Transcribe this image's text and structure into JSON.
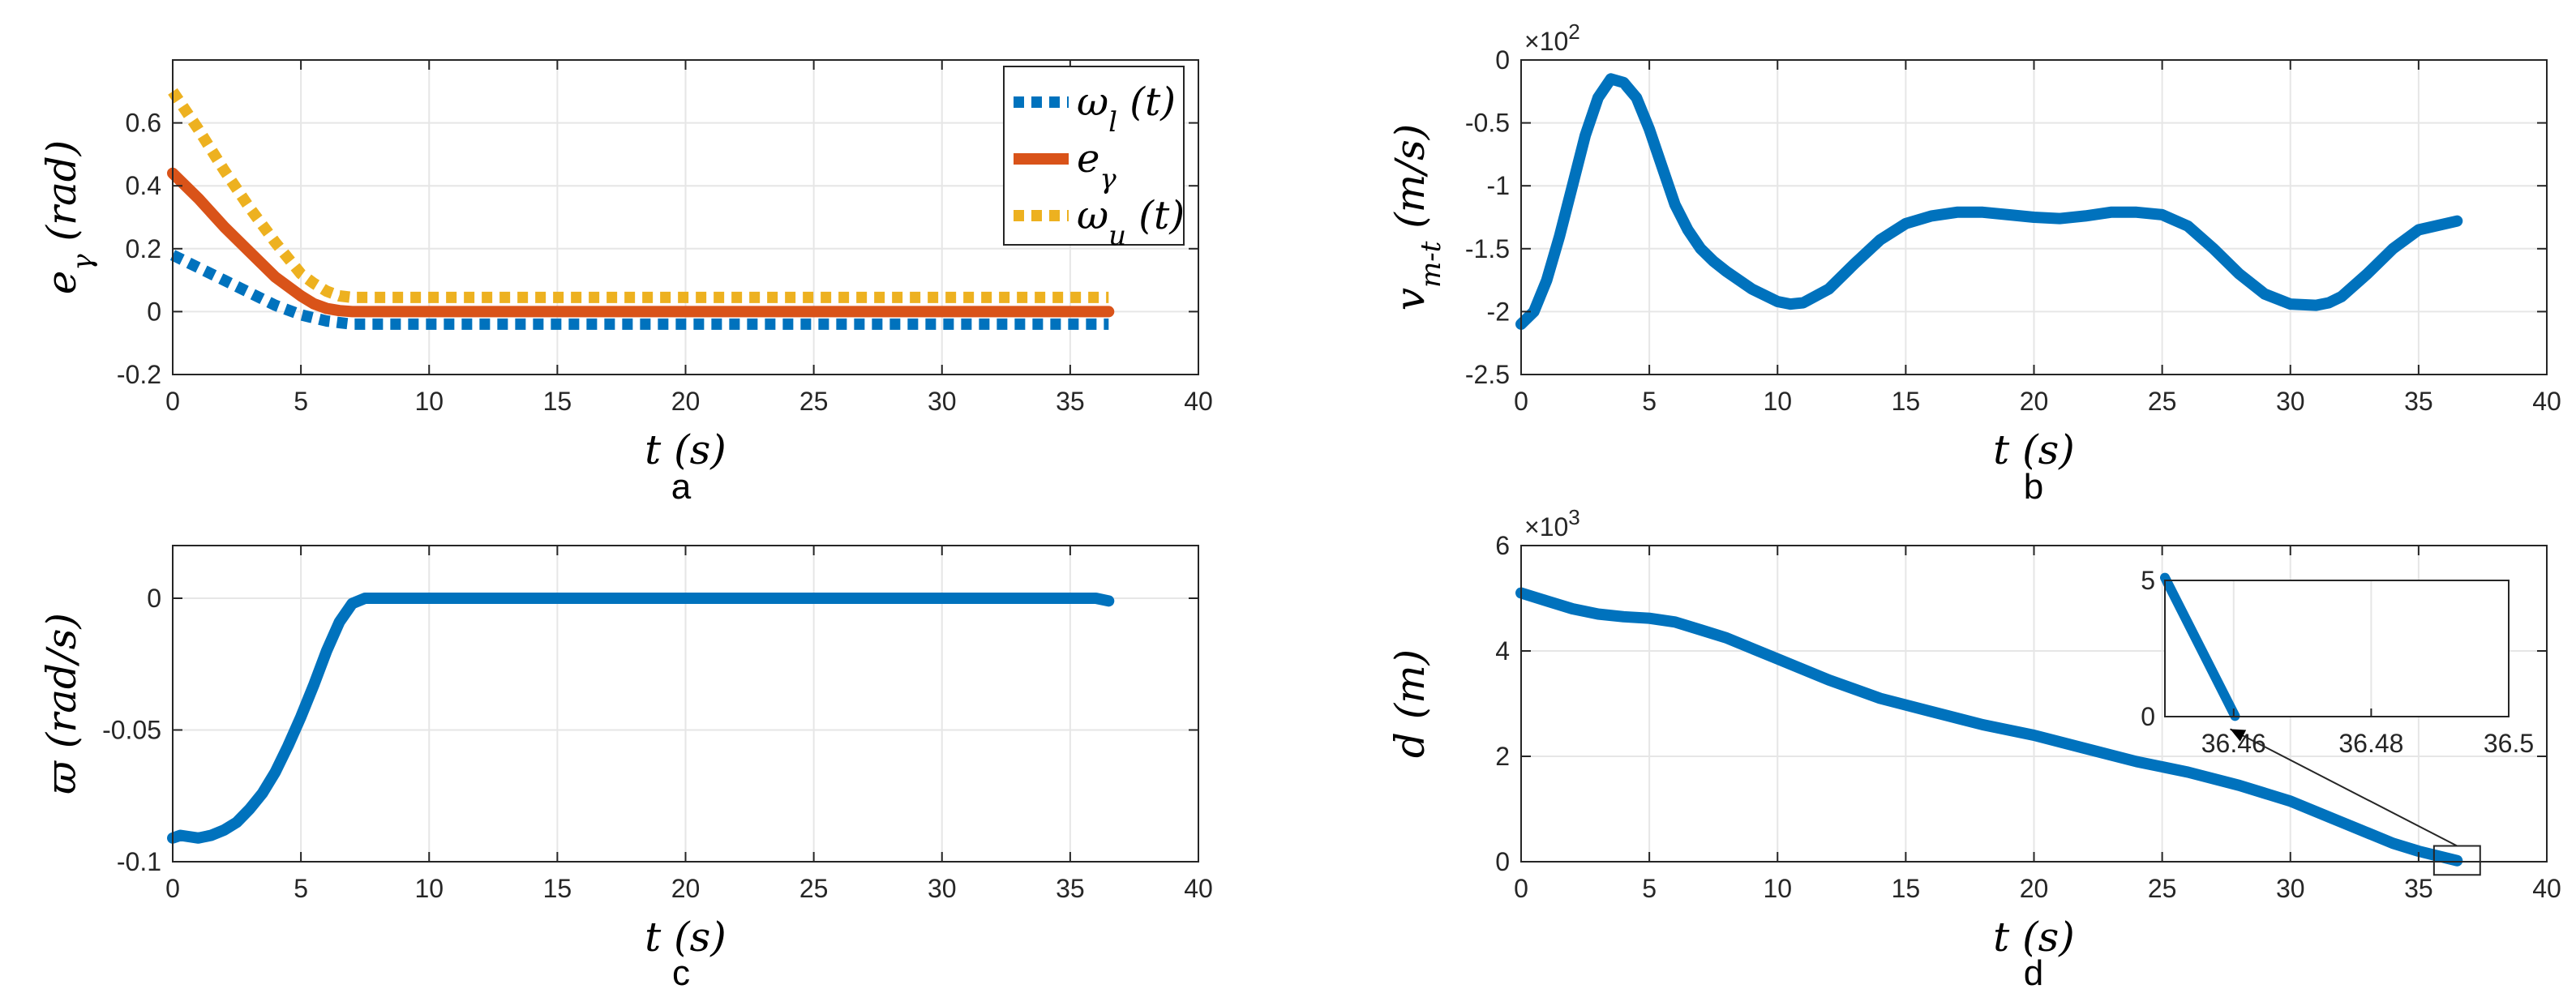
{
  "chart_data": [
    {
      "id": "a",
      "type": "line",
      "subtitle": "a",
      "xlabel": "t (s)",
      "ylabel": "e_γ (rad)",
      "xlim": [
        0,
        40
      ],
      "ylim": [
        -0.2,
        0.8
      ],
      "xticks": [
        0,
        5,
        10,
        15,
        20,
        25,
        30,
        35,
        40
      ],
      "xtick_labels": [
        "0",
        "5",
        "10",
        "15",
        "20",
        "25",
        "30",
        "35",
        "40"
      ],
      "yticks": [
        -0.2,
        0,
        0.2,
        0.4,
        0.6
      ],
      "ytick_labels": [
        "-0.2",
        "0",
        "0.2",
        "0.4",
        "0.6"
      ],
      "grid": true,
      "legend_position": "top-right",
      "series": [
        {
          "name": "ω_l (t)",
          "color": "#0072BD",
          "style": "dotted",
          "x": [
            0,
            1,
            2,
            3,
            4,
            5,
            5.5,
            6,
            6.5,
            7,
            8,
            10,
            15,
            20,
            25,
            30,
            36.5
          ],
          "y": [
            0.18,
            0.14,
            0.1,
            0.06,
            0.02,
            -0.01,
            -0.02,
            -0.03,
            -0.035,
            -0.04,
            -0.04,
            -0.04,
            -0.04,
            -0.04,
            -0.04,
            -0.04,
            -0.04
          ]
        },
        {
          "name": "e_γ",
          "color": "#D95319",
          "style": "solid",
          "x": [
            0,
            1,
            2,
            3,
            4,
            5,
            5.5,
            6,
            6.5,
            7,
            8,
            10,
            15,
            20,
            25,
            30,
            36.5
          ],
          "y": [
            0.44,
            0.36,
            0.27,
            0.19,
            0.11,
            0.05,
            0.025,
            0.01,
            0.003,
            0,
            0,
            0,
            0,
            0,
            0,
            0,
            0
          ]
        },
        {
          "name": "ω_u (t)",
          "color": "#EDB120",
          "style": "dotted",
          "x": [
            0,
            1,
            2,
            3,
            4,
            5,
            5.5,
            6,
            6.5,
            7,
            8,
            10,
            15,
            20,
            25,
            30,
            36.5
          ],
          "y": [
            0.7,
            0.58,
            0.45,
            0.33,
            0.22,
            0.12,
            0.09,
            0.065,
            0.05,
            0.045,
            0.045,
            0.045,
            0.045,
            0.045,
            0.045,
            0.045,
            0.045
          ]
        }
      ]
    },
    {
      "id": "b",
      "type": "line",
      "subtitle": "b",
      "xlabel": "t (s)",
      "ylabel": "v_{m-t} (m/s)",
      "exponent_label": "×10",
      "exponent_power": "2",
      "xlim": [
        0,
        40
      ],
      "ylim": [
        -2.5,
        0
      ],
      "xticks": [
        0,
        5,
        10,
        15,
        20,
        25,
        30,
        35,
        40
      ],
      "xtick_labels": [
        "0",
        "5",
        "10",
        "15",
        "20",
        "25",
        "30",
        "35",
        "40"
      ],
      "yticks": [
        -2.5,
        -2,
        -1.5,
        -1,
        -0.5,
        0
      ],
      "ytick_labels": [
        "-2.5",
        "-2",
        "-1.5",
        "-1",
        "-0.5",
        "0"
      ],
      "grid": true,
      "series": [
        {
          "name": "v_{m-t}",
          "color": "#0072BD",
          "style": "solid",
          "x": [
            0,
            0.5,
            1,
            1.5,
            2,
            2.5,
            3,
            3.5,
            4,
            4.5,
            5,
            5.5,
            6,
            6.5,
            7,
            7.5,
            8,
            9,
            10,
            10.5,
            11,
            12,
            13,
            14,
            15,
            16,
            17,
            18,
            19,
            20,
            21,
            22,
            23,
            24,
            25,
            26,
            27,
            28,
            29,
            30,
            31,
            31.5,
            32,
            33,
            34,
            35,
            36.5
          ],
          "y": [
            -2.1,
            -2.0,
            -1.75,
            -1.4,
            -1.0,
            -0.6,
            -0.3,
            -0.15,
            -0.18,
            -0.3,
            -0.55,
            -0.85,
            -1.15,
            -1.35,
            -1.5,
            -1.6,
            -1.68,
            -1.82,
            -1.92,
            -1.94,
            -1.93,
            -1.82,
            -1.62,
            -1.43,
            -1.3,
            -1.24,
            -1.21,
            -1.21,
            -1.23,
            -1.25,
            -1.26,
            -1.24,
            -1.21,
            -1.21,
            -1.23,
            -1.32,
            -1.5,
            -1.7,
            -1.86,
            -1.94,
            -1.95,
            -1.93,
            -1.88,
            -1.7,
            -1.5,
            -1.35,
            -1.28
          ]
        }
      ]
    },
    {
      "id": "c",
      "type": "line",
      "subtitle": "c",
      "xlabel": "t (s)",
      "ylabel": "ϖ (rad/s)",
      "xlim": [
        0,
        40
      ],
      "ylim": [
        -0.1,
        0.02
      ],
      "xticks": [
        0,
        5,
        10,
        15,
        20,
        25,
        30,
        35,
        40
      ],
      "xtick_labels": [
        "0",
        "5",
        "10",
        "15",
        "20",
        "25",
        "30",
        "35",
        "40"
      ],
      "yticks": [
        -0.1,
        -0.05,
        0
      ],
      "ytick_labels": [
        "-0.1",
        "-0.05",
        "0"
      ],
      "grid": true,
      "series": [
        {
          "name": "ϖ",
          "color": "#0072BD",
          "style": "solid",
          "x": [
            0,
            0.3,
            1,
            1.5,
            2,
            2.5,
            3,
            3.5,
            4,
            4.5,
            5,
            5.5,
            6,
            6.5,
            7,
            7.5,
            8,
            10,
            15,
            20,
            25,
            30,
            36,
            36.5
          ],
          "y": [
            -0.091,
            -0.09,
            -0.091,
            -0.09,
            -0.088,
            -0.085,
            -0.08,
            -0.074,
            -0.066,
            -0.056,
            -0.045,
            -0.033,
            -0.02,
            -0.009,
            -0.002,
            0,
            0,
            0,
            0,
            0,
            0,
            0,
            0,
            -0.001
          ]
        }
      ]
    },
    {
      "id": "d",
      "type": "line",
      "subtitle": "d",
      "xlabel": "t (s)",
      "ylabel": "d (m)",
      "exponent_label": "×10",
      "exponent_power": "3",
      "xlim": [
        0,
        40
      ],
      "ylim": [
        0,
        6
      ],
      "xticks": [
        0,
        5,
        10,
        15,
        20,
        25,
        30,
        35,
        40
      ],
      "xtick_labels": [
        "0",
        "5",
        "10",
        "15",
        "20",
        "25",
        "30",
        "35",
        "40"
      ],
      "yticks": [
        0,
        2,
        4,
        6
      ],
      "ytick_labels": [
        "0",
        "2",
        "4",
        "6"
      ],
      "grid": true,
      "series": [
        {
          "name": "d",
          "color": "#0072BD",
          "style": "solid",
          "x": [
            0,
            1,
            2,
            3,
            4,
            5,
            6,
            7,
            8,
            9,
            10,
            12,
            14,
            16,
            18,
            20,
            22,
            24,
            26,
            28,
            30,
            32,
            34,
            35,
            36,
            36.5
          ],
          "y": [
            5.1,
            4.95,
            4.8,
            4.7,
            4.65,
            4.62,
            4.55,
            4.4,
            4.25,
            4.05,
            3.85,
            3.45,
            3.1,
            2.85,
            2.6,
            2.4,
            2.15,
            1.9,
            1.7,
            1.45,
            1.15,
            0.75,
            0.35,
            0.2,
            0.08,
            0.02
          ]
        }
      ],
      "inset": {
        "xlim": [
          36.45,
          36.5
        ],
        "ylim": [
          0,
          5
        ],
        "xticks": [
          36.46,
          36.48,
          36.5
        ],
        "xtick_labels": [
          "36.46",
          "36.48",
          "36.5"
        ],
        "yticks": [
          0,
          5
        ],
        "ytick_labels": [
          "0",
          "5"
        ],
        "x": [
          36.45,
          36.4602
        ],
        "y": [
          5.1,
          0.02
        ],
        "zoom_box_x": [
          35.6,
          37.4
        ],
        "zoom_box_y": [
          -0.25,
          0.3
        ]
      }
    }
  ]
}
